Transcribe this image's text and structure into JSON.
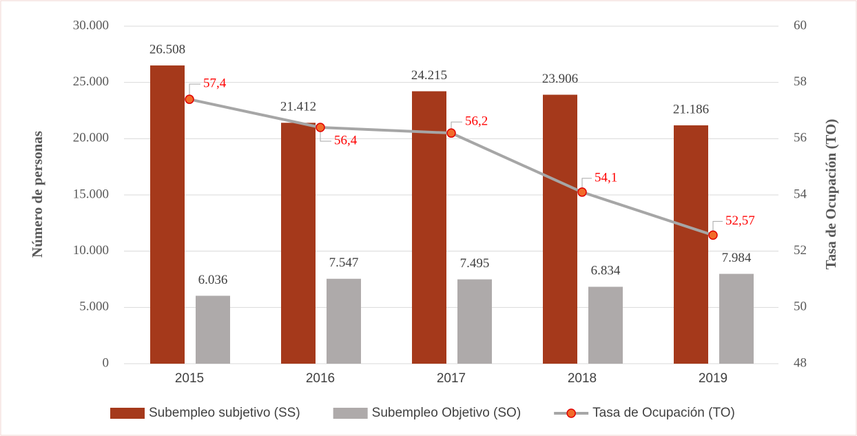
{
  "chart_data": {
    "type": "bar",
    "categories": [
      "2015",
      "2016",
      "2017",
      "2018",
      "2019"
    ],
    "series": [
      {
        "name": "Subempleo subjetivo (SS)",
        "type": "bar",
        "color": "#a5391b",
        "values": [
          26508,
          21412,
          24215,
          23906,
          21186
        ],
        "value_labels": [
          "26.508",
          "21.412",
          "24.215",
          "23.906",
          "21.186"
        ]
      },
      {
        "name": "Subempleo Objetivo (SO)",
        "type": "bar",
        "color": "#aeaaaa",
        "values": [
          6036,
          7547,
          7495,
          6834,
          7984
        ],
        "value_labels": [
          "6.036",
          "7.547",
          "7.495",
          "6.834",
          "7.984"
        ]
      },
      {
        "name": "Tasa de Ocupación (TO)",
        "type": "line",
        "axis": "y2",
        "color": "#a6a6a6",
        "marker_color": "#f26b2a",
        "label_color": "#ff0000",
        "values": [
          57.4,
          56.4,
          56.2,
          54.1,
          52.57
        ],
        "value_labels": [
          "57,4",
          "56,4",
          "56,2",
          "54,1",
          "52,57"
        ]
      }
    ],
    "ylabel": "Número de personas",
    "y2label": "Tasa de Ocupación (TO)",
    "ylim": [
      0,
      30000
    ],
    "yticks": [
      0,
      {
        "value": 5000,
        "label": "5.000"
      },
      {
        "value": 10000,
        "label": "10.000"
      },
      {
        "value": 15000,
        "label": "15.000"
      },
      {
        "value": 20000,
        "label": "20.000"
      },
      {
        "value": 25000,
        "label": "25.000"
      },
      {
        "value": 30000,
        "label": "30.000"
      }
    ],
    "y2lim": [
      48,
      60
    ],
    "y2ticks": [
      48,
      50,
      52,
      54,
      56,
      58,
      60
    ],
    "grid": true,
    "legend": "bottom"
  }
}
